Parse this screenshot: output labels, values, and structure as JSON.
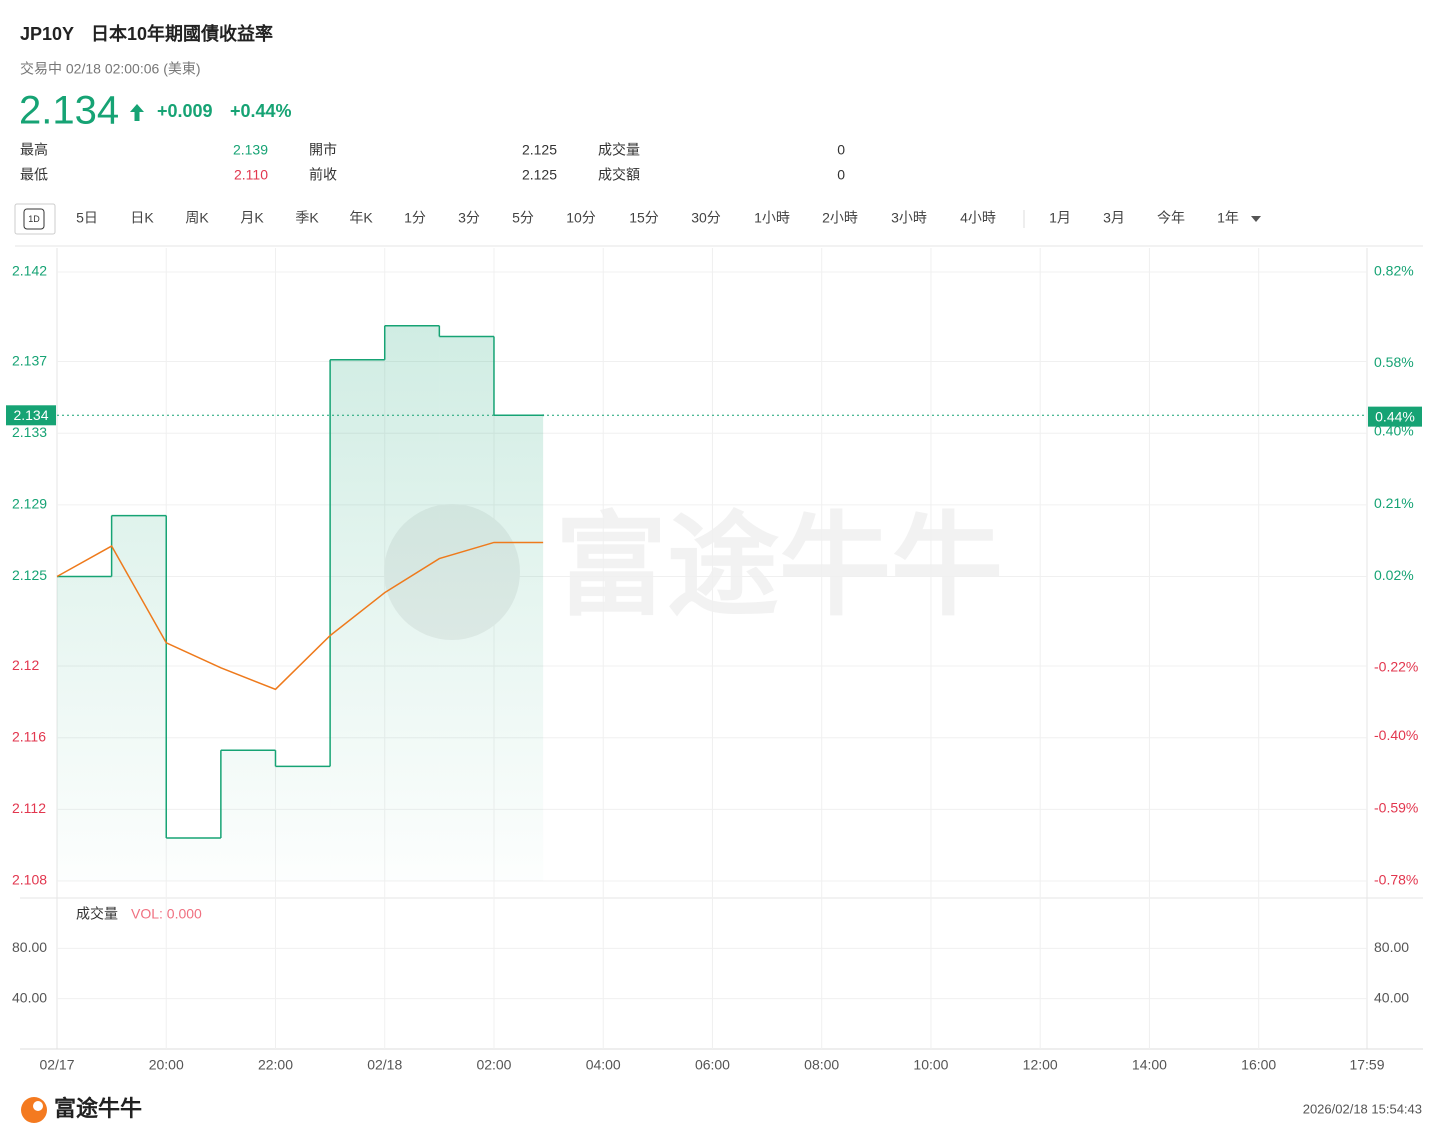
{
  "header": {
    "symbol": "JP10Y",
    "name": "日本10年期國債收益率",
    "status": "交易中 02/18 02:00:06 (美東)",
    "price": "2.134",
    "change": "+0.009",
    "change_pct": "+0.44%"
  },
  "stats": [
    [
      [
        "最高",
        "2.139"
      ],
      [
        "開市",
        "2.125"
      ],
      [
        "成交量",
        "0"
      ]
    ],
    [
      [
        "最低",
        "2.110"
      ],
      [
        "前收",
        "2.125"
      ],
      [
        "成交額",
        "0"
      ]
    ]
  ],
  "tabs": {
    "icon": "1D",
    "periods": [
      "5日",
      "日K",
      "周K",
      "月K",
      "季K",
      "年K",
      "1分",
      "3分",
      "5分",
      "10分",
      "15分",
      "30分",
      "1小時",
      "2小時",
      "3小時",
      "4小時"
    ],
    "ranges": [
      "1月",
      "3月",
      "今年",
      "1年"
    ]
  },
  "watermark": "富途牛牛",
  "chart_data": [
    {
      "type": "line",
      "x": [
        0,
        1,
        2,
        3,
        4,
        5,
        6,
        7,
        8,
        8.9
      ],
      "xlim": [
        0,
        23.983
      ],
      "xticks": [
        {
          "value": 0,
          "label": "02/17"
        },
        {
          "value": 2,
          "label": "20:00"
        },
        {
          "value": 4,
          "label": "22:00"
        },
        {
          "value": 6,
          "label": "02/18"
        },
        {
          "value": 8,
          "label": "02:00"
        },
        {
          "value": 10,
          "label": "04:00"
        },
        {
          "value": 12,
          "label": "06:00"
        },
        {
          "value": 14,
          "label": "08:00"
        },
        {
          "value": 16,
          "label": "10:00"
        },
        {
          "value": 18,
          "label": "12:00"
        },
        {
          "value": 20,
          "label": "14:00"
        },
        {
          "value": 22,
          "label": "16:00"
        },
        {
          "value": 23.983,
          "label": "17:59"
        }
      ],
      "ylim": [
        2.108,
        2.142
      ],
      "yticks": [
        2.142,
        2.137,
        2.133,
        2.129,
        2.125,
        2.12,
        2.116,
        2.112,
        2.108
      ],
      "y2lim": [
        -0.78,
        0.82
      ],
      "y2ticks": [
        {
          "value": 0.82,
          "label": "0.82%"
        },
        {
          "value": 0.58,
          "label": "0.58%"
        },
        {
          "value": 0.4,
          "label": "0.40%"
        },
        {
          "value": 0.21,
          "label": "0.21%"
        },
        {
          "value": 0.02,
          "label": "0.02%"
        },
        {
          "value": -0.22,
          "label": "-0.22%"
        },
        {
          "value": -0.4,
          "label": "-0.40%"
        },
        {
          "value": -0.59,
          "label": "-0.59%"
        },
        {
          "value": -0.78,
          "label": "-0.78%"
        }
      ],
      "price_tag": {
        "value": 2.134,
        "label": "2.134"
      },
      "pct_tag": {
        "value": 0.44,
        "label": "0.44%"
      },
      "up_color": "#16a374",
      "down_color": "#e2364e",
      "grid": true,
      "series": [
        {
          "color": "#16a374",
          "style": "step",
          "values": [
            2.125,
            2.1284,
            2.1104,
            2.1153,
            2.1144,
            2.1371,
            2.139,
            2.1384,
            2.134,
            2.134
          ]
        },
        {
          "color": "#ee7a1c",
          "style": "line",
          "values": [
            2.125,
            2.1267,
            2.1213,
            2.1199,
            2.1187,
            2.1217,
            2.1241,
            2.126,
            2.1269,
            2.1269
          ]
        }
      ]
    },
    {
      "type": "bar",
      "title": "成交量",
      "subtitle": "VOL: 0.000",
      "ylim": [
        0,
        120
      ],
      "yticks": [
        {
          "value": 40,
          "label": "40.00"
        },
        {
          "value": 80,
          "label": "80.00"
        }
      ]
    }
  ],
  "footer": {
    "brand": "富途牛牛",
    "timestamp": "2026/02/18 15:54:43"
  }
}
